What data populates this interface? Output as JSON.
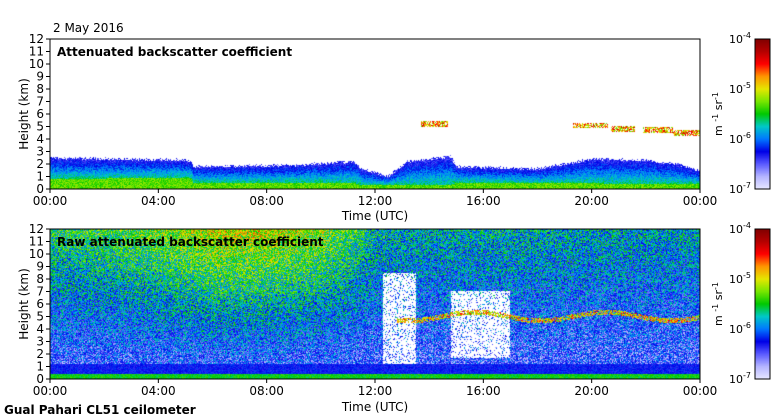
{
  "date": "2 May 2016",
  "footer": "Gual Pahari CL51 ceilometer",
  "colors": {
    "colormap": [
      "#e6e6ff",
      "#b4b4ff",
      "#5a5aff",
      "#0000e6",
      "#0078ff",
      "#00c8c8",
      "#00c800",
      "#78e600",
      "#e6e600",
      "#ff9600",
      "#ff0000",
      "#b40000",
      "#800000"
    ],
    "blank": "#ffffff"
  },
  "colorbar": {
    "ticks": [
      "10",
      "10",
      "10",
      "10"
    ],
    "exponents": [
      "-4",
      "-5",
      "-6",
      "-7"
    ],
    "tick_values": [
      0.0001,
      1e-05,
      1e-06,
      1e-07
    ],
    "unit_base_1": "m",
    "unit_exp_1": "-1",
    "unit_base_2": "sr",
    "unit_exp_2": "-1"
  },
  "chart_data": [
    {
      "type": "heatmap",
      "title": "Attenuated backscatter coefficient",
      "xlabel": "Time (UTC)",
      "ylabel": "Height (km)",
      "xlim": [
        0,
        24
      ],
      "ylim": [
        0,
        12
      ],
      "x_ticks": [
        0,
        4,
        8,
        12,
        16,
        20,
        24
      ],
      "x_tick_labels": [
        "00:00",
        "04:00",
        "08:00",
        "12:00",
        "16:00",
        "20:00",
        "00:00"
      ],
      "y_ticks": [
        0,
        1,
        2,
        3,
        4,
        5,
        6,
        7,
        8,
        9,
        10,
        11,
        12
      ],
      "y_tick_labels": [
        "0",
        "1",
        "2",
        "3",
        "4",
        "5",
        "6",
        "7",
        "8",
        "9",
        "10",
        "11",
        "12"
      ],
      "color_scale": "log",
      "color_range": [
        1e-07,
        0.0001
      ],
      "boundary_layer_top_km": [
        [
          0,
          2.5
        ],
        [
          2,
          2.4
        ],
        [
          5.2,
          2.3
        ],
        [
          5.3,
          1.8
        ],
        [
          9,
          1.9
        ],
        [
          11.2,
          2.2
        ],
        [
          11.5,
          1.6
        ],
        [
          12.5,
          1.0
        ],
        [
          13.2,
          2.2
        ],
        [
          14.8,
          2.6
        ],
        [
          15,
          1.8
        ],
        [
          18,
          1.6
        ],
        [
          20,
          2.4
        ],
        [
          22,
          2.3
        ],
        [
          23.2,
          2.0
        ],
        [
          24,
          1.4
        ]
      ],
      "surface_layer_top_km": [
        [
          0,
          0.8
        ],
        [
          5.2,
          0.9
        ],
        [
          5.3,
          0.5
        ],
        [
          11.2,
          0.5
        ],
        [
          11.5,
          0.3
        ],
        [
          14.8,
          0.3
        ],
        [
          15,
          0.5
        ],
        [
          24,
          0.4
        ]
      ],
      "cloud_layers": [
        {
          "start": 13.7,
          "end": 14.7,
          "height_km": 5.2
        },
        {
          "start": 19.3,
          "end": 20.6,
          "height_km": 5.1
        },
        {
          "start": 20.7,
          "end": 21.6,
          "height_km": 4.8
        },
        {
          "start": 21.9,
          "end": 23.0,
          "height_km": 4.7
        },
        {
          "start": 23.0,
          "end": 24.0,
          "height_km": 4.5
        }
      ],
      "blank_background": true
    },
    {
      "type": "heatmap",
      "title": "Raw attenuated backscatter coefficient",
      "xlabel": "Time (UTC)",
      "ylabel": "Height (km)",
      "xlim": [
        0,
        24
      ],
      "ylim": [
        0,
        12
      ],
      "x_ticks": [
        0,
        4,
        8,
        12,
        16,
        20,
        24
      ],
      "x_tick_labels": [
        "00:00",
        "04:00",
        "08:00",
        "12:00",
        "16:00",
        "20:00",
        "00:00"
      ],
      "y_ticks": [
        0,
        1,
        2,
        3,
        4,
        5,
        6,
        7,
        8,
        9,
        10,
        11,
        12
      ],
      "y_tick_labels": [
        "0",
        "1",
        "2",
        "3",
        "4",
        "5",
        "6",
        "7",
        "8",
        "9",
        "10",
        "11",
        "12"
      ],
      "color_scale": "log",
      "color_range": [
        1e-07,
        0.0001
      ],
      "noise_level_profile": [
        [
          0,
          0.55
        ],
        [
          2,
          0.6
        ],
        [
          4,
          0.7
        ],
        [
          6,
          0.85
        ],
        [
          8,
          0.85
        ],
        [
          10,
          0.75
        ],
        [
          11.2,
          0.6
        ],
        [
          12,
          0.45
        ],
        [
          14,
          0.4
        ],
        [
          16,
          0.42
        ],
        [
          18,
          0.42
        ],
        [
          20,
          0.4
        ],
        [
          24,
          0.38
        ]
      ],
      "sparse_regions": [
        {
          "start": 12.3,
          "end": 13.5,
          "bottom_km": 1.2,
          "top_km": 8.5
        },
        {
          "start": 14.8,
          "end": 17.0,
          "bottom_km": 1.7,
          "top_km": 7.0
        }
      ],
      "cloud_layers": [
        {
          "start": 12.8,
          "end": 24.0,
          "height_km": 5.0
        }
      ]
    }
  ]
}
